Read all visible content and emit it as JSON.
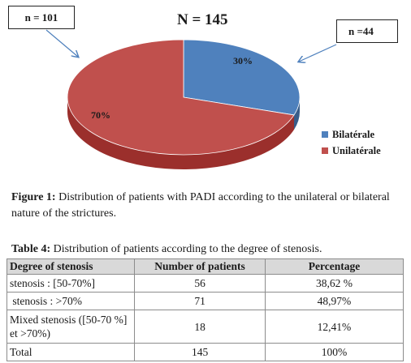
{
  "figure": {
    "total_label": "N = 145",
    "callouts": {
      "left": "n = 101",
      "right": "n =44"
    },
    "colors": {
      "bilateral": "#4f81bd",
      "unilateral": "#c0504d",
      "bilateral_side": "#385d8a",
      "unilateral_side": "#9b2f2c"
    },
    "legend": [
      "Bilatérale",
      "Unilatérale"
    ],
    "caption_bold": "Figure 1:",
    "caption_text": " Distribution of patients with PADI according to the unilateral or bilateral nature of the strictures."
  },
  "chart_data": {
    "type": "pie",
    "categories": [
      "Bilatérale",
      "Unilatérale"
    ],
    "values": [
      30,
      70
    ],
    "counts": [
      44,
      101
    ],
    "total": 145,
    "value_labels": [
      "30%",
      "70%"
    ],
    "title": "N = 145",
    "legend_position": "right"
  },
  "table": {
    "caption_bold": "Table 4:",
    "caption_text": " Distribution of patients according to the degree of stenosis.",
    "headers": [
      "Degree of stenosis",
      "Number of patients",
      "Percentage"
    ],
    "rows": [
      [
        "stenosis : [50-70%]",
        "56",
        "38,62 %"
      ],
      [
        " stenosis : >70%",
        "71",
        "48,97%"
      ],
      [
        "Mixed stenosis ([50-70 %]  et >70%)",
        "18",
        "12,41%"
      ],
      [
        "Total",
        "145",
        "100%"
      ]
    ]
  }
}
